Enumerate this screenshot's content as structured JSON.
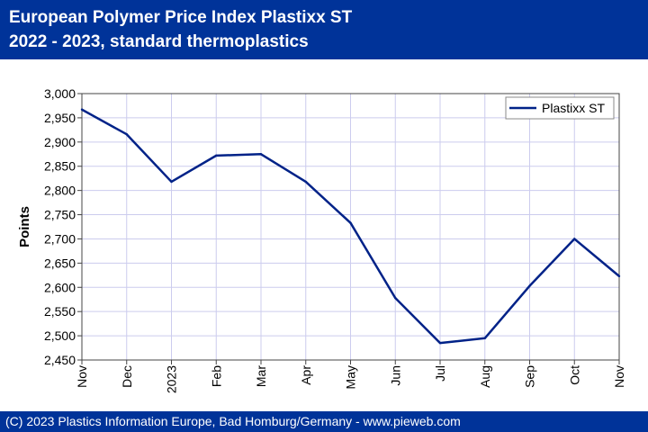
{
  "header": {
    "title_line1": "European Polymer Price Index Plastixx ST",
    "title_line2": "2022 - 2023, standard thermoplastics"
  },
  "footer": {
    "text": "(C) 2023 Plastics Information Europe, Bad Homburg/Germany - www.pieweb.com"
  },
  "colors": {
    "header_bg": "#003399",
    "series_line": "#002288",
    "grid": "#ccccee",
    "plot_border": "#444444"
  },
  "chart_data": {
    "type": "line",
    "title": "European Polymer Price Index Plastixx ST",
    "subtitle": "2022 - 2023, standard thermoplastics",
    "xlabel": "",
    "ylabel": "Points",
    "categories": [
      "Nov",
      "Dec",
      "2023",
      "Feb",
      "Mar",
      "Apr",
      "May",
      "Jun",
      "Jul",
      "Aug",
      "Sep",
      "Oct",
      "Nov"
    ],
    "series": [
      {
        "name": "Plastixx ST",
        "values": [
          2967,
          2916,
          2818,
          2872,
          2875,
          2818,
          2733,
          2578,
          2485,
          2495,
          2603,
          2700,
          2623
        ]
      }
    ],
    "ylim": [
      2450,
      3000
    ],
    "yticks": [
      2450,
      2500,
      2550,
      2600,
      2650,
      2700,
      2750,
      2800,
      2850,
      2900,
      2950,
      3000
    ],
    "ytick_labels": [
      "2,450",
      "2,500",
      "2,550",
      "2,600",
      "2,650",
      "2,700",
      "2,750",
      "2,800",
      "2,850",
      "2,900",
      "2,950",
      "3,000"
    ],
    "grid": true,
    "legend_position": "top-right"
  }
}
